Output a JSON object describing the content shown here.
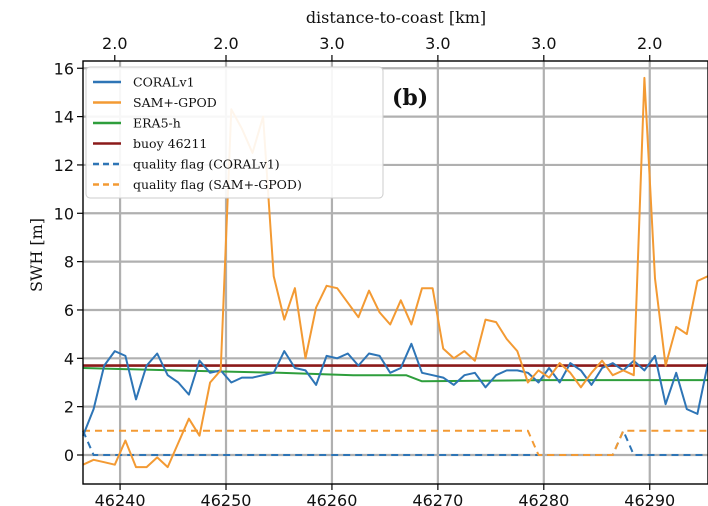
{
  "chart_data": {
    "type": "line",
    "panel_label": "(b)",
    "xlabel": "",
    "top_xlabel": "distance-to-coast [km]",
    "ylabel": "SWH [m]",
    "xlim": [
      46236.5,
      46295.5
    ],
    "ylim": [
      -1.2,
      16.3
    ],
    "x_ticks": [
      46240,
      46250,
      46260,
      46270,
      46280,
      46290
    ],
    "y_ticks": [
      0,
      2,
      4,
      6,
      8,
      10,
      12,
      14,
      16
    ],
    "top_ticks": [
      {
        "x": 46239.5,
        "label": "2.0"
      },
      {
        "x": 46250,
        "label": "2.0"
      },
      {
        "x": 46260,
        "label": "3.0"
      },
      {
        "x": 46270,
        "label": "3.0"
      },
      {
        "x": 46280,
        "label": "3.0"
      },
      {
        "x": 46290,
        "label": "2.0"
      }
    ],
    "grid": true,
    "legend_position": "top-left",
    "series": [
      {
        "name": "CORALv1",
        "style": "solid",
        "color": "#2e75b6",
        "x": [
          46236.5,
          46237.5,
          46238.5,
          46239.5,
          46240.5,
          46241.5,
          46242.5,
          46243.5,
          46244.5,
          46245.5,
          46246.5,
          46247.5,
          46248.5,
          46249.5,
          46250.5,
          46251.5,
          46252.5,
          46253.5,
          46254.5,
          46255.5,
          46256.5,
          46257.5,
          46258.5,
          46259.5,
          46260.5,
          46261.5,
          46262.5,
          46263.5,
          46264.5,
          46265.5,
          46266.5,
          46267.5,
          46268.5,
          46269.5,
          46270.5,
          46271.5,
          46272.5,
          46273.5,
          46274.5,
          46275.5,
          46276.5,
          46277.5,
          46278.5,
          46279.5,
          46280.5,
          46281.5,
          46282.5,
          46283.5,
          46284.5,
          46285.5,
          46286.5,
          46287.5,
          46288.5,
          46289.5,
          46290.5,
          46291.5,
          46292.5,
          46293.5,
          46294.5,
          46295.5
        ],
        "y": [
          0.8,
          1.9,
          3.7,
          4.3,
          4.1,
          2.3,
          3.7,
          4.2,
          3.3,
          3.0,
          2.5,
          3.9,
          3.4,
          3.5,
          3.0,
          3.2,
          3.2,
          3.3,
          3.4,
          4.3,
          3.6,
          3.5,
          2.9,
          4.1,
          4.0,
          4.2,
          3.7,
          4.2,
          4.1,
          3.4,
          3.6,
          4.6,
          3.4,
          3.3,
          3.2,
          2.9,
          3.3,
          3.4,
          2.8,
          3.3,
          3.5,
          3.5,
          3.4,
          3.0,
          3.6,
          3.0,
          3.8,
          3.5,
          2.9,
          3.6,
          3.8,
          3.5,
          3.9,
          3.5,
          4.1,
          2.1,
          3.4,
          1.9,
          1.7,
          3.8
        ]
      },
      {
        "name": "SAM+-GPOD",
        "style": "solid",
        "color": "#f39a33",
        "x": [
          46236.5,
          46237.5,
          46238.5,
          46239.5,
          46240.5,
          46241.5,
          46242.5,
          46243.5,
          46244.5,
          46245.5,
          46246.5,
          46247.5,
          46248.5,
          46249.5,
          46250.5,
          46251.5,
          46252.5,
          46253.5,
          46254.5,
          46255.5,
          46256.5,
          46257.5,
          46258.5,
          46259.5,
          46260.5,
          46261.5,
          46262.5,
          46263.5,
          46264.5,
          46265.5,
          46266.5,
          46267.5,
          46268.5,
          46269.5,
          46270.5,
          46271.5,
          46272.5,
          46273.5,
          46274.5,
          46275.5,
          46276.5,
          46277.5,
          46278.5,
          46279.5,
          46280.5,
          46281.5,
          46282.5,
          46283.5,
          46284.5,
          46285.5,
          46286.5,
          46287.5,
          46288.5,
          46289.5,
          46290.5,
          46291.5,
          46292.5,
          46293.5,
          46294.5,
          46295.5
        ],
        "y": [
          -0.4,
          -0.2,
          -0.3,
          -0.4,
          0.6,
          -0.5,
          -0.5,
          -0.1,
          -0.5,
          0.5,
          1.5,
          0.8,
          3.0,
          3.5,
          14.3,
          13.5,
          12.5,
          14.0,
          7.4,
          5.6,
          6.9,
          4.0,
          6.1,
          7.0,
          6.9,
          6.3,
          5.7,
          6.8,
          5.9,
          5.4,
          6.4,
          5.4,
          6.9,
          6.9,
          4.4,
          4.0,
          4.3,
          3.9,
          5.6,
          5.5,
          4.8,
          4.3,
          3.0,
          3.5,
          3.2,
          3.8,
          3.4,
          2.8,
          3.4,
          3.9,
          3.3,
          3.5,
          3.3,
          15.6,
          7.3,
          3.7,
          5.3,
          5.0,
          7.2,
          7.4
        ]
      },
      {
        "name": "ERA5-h",
        "style": "solid",
        "color": "#2e9e3c",
        "x": [
          46236.5,
          46245,
          46255,
          46262,
          46267,
          46268.5,
          46280,
          46295.5
        ],
        "y": [
          3.6,
          3.5,
          3.4,
          3.3,
          3.3,
          3.05,
          3.1,
          3.1
        ]
      },
      {
        "name": "buoy 46211",
        "style": "solid",
        "color": "#8b1a1a",
        "x": [
          46236.5,
          46295.5
        ],
        "y": [
          3.7,
          3.7
        ]
      },
      {
        "name": "quality flag (CORALv1)",
        "style": "dashed",
        "color": "#2e75b6",
        "x": [
          46236.5,
          46237.5,
          46238.5,
          46286.5,
          46287.5,
          46288.5,
          46295.5
        ],
        "y": [
          1.0,
          0.0,
          0.0,
          0.0,
          1.0,
          0.0,
          0.0
        ]
      },
      {
        "name": "quality flag (SAM+-GPOD)",
        "style": "dashed",
        "color": "#f39a33",
        "x": [
          46236.5,
          46278.5,
          46279.5,
          46286.5,
          46287.5,
          46295.5
        ],
        "y": [
          1.0,
          1.0,
          0.0,
          0.0,
          1.0,
          1.0
        ]
      }
    ]
  }
}
